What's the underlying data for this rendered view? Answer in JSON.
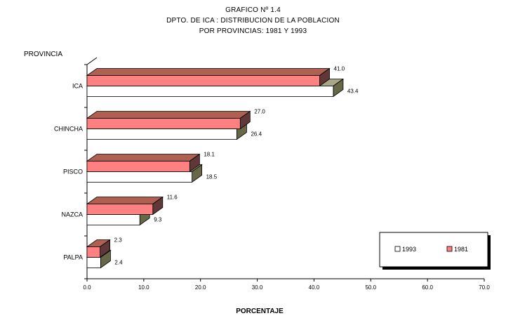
{
  "chart_data": {
    "type": "bar",
    "orientation": "horizontal",
    "title": [
      "GRAFICO Nº 1.4",
      "DPTO. DE ICA : DISTRIBUCION DE LA POBLACION",
      "POR PROVINCIAS: 1981 Y 1993"
    ],
    "ylabel": "PROVINCIA",
    "xlabel": "PORCENTAJE",
    "categories": [
      "ICA",
      "CHINCHA",
      "PISCO",
      "NAZCA",
      "PALPA"
    ],
    "series": [
      {
        "name": "1981",
        "values": [
          41.0,
          27.0,
          18.1,
          11.6,
          2.3
        ],
        "labels": [
          "41.0",
          "27.0",
          "18.1",
          "11.6",
          "2.3"
        ],
        "color": "#ff8080",
        "top_color": "#b06050",
        "side_color": "#603838"
      },
      {
        "name": "1993",
        "values": [
          43.4,
          26.4,
          18.5,
          9.3,
          2.4
        ],
        "labels": [
          "43.4",
          "26.4",
          "18.5",
          "9.3",
          "2.4"
        ],
        "color": "#ffffff",
        "top_color": "#a8a888",
        "side_color": "#686848"
      }
    ],
    "xlim": [
      0,
      70
    ],
    "xticks": [
      "0.0",
      "10.0",
      "20.0",
      "30.0",
      "40.0",
      "50.0",
      "60.0",
      "70.0"
    ],
    "legend": {
      "position": "bottom-right",
      "entries": [
        "1993",
        "1981"
      ]
    }
  }
}
